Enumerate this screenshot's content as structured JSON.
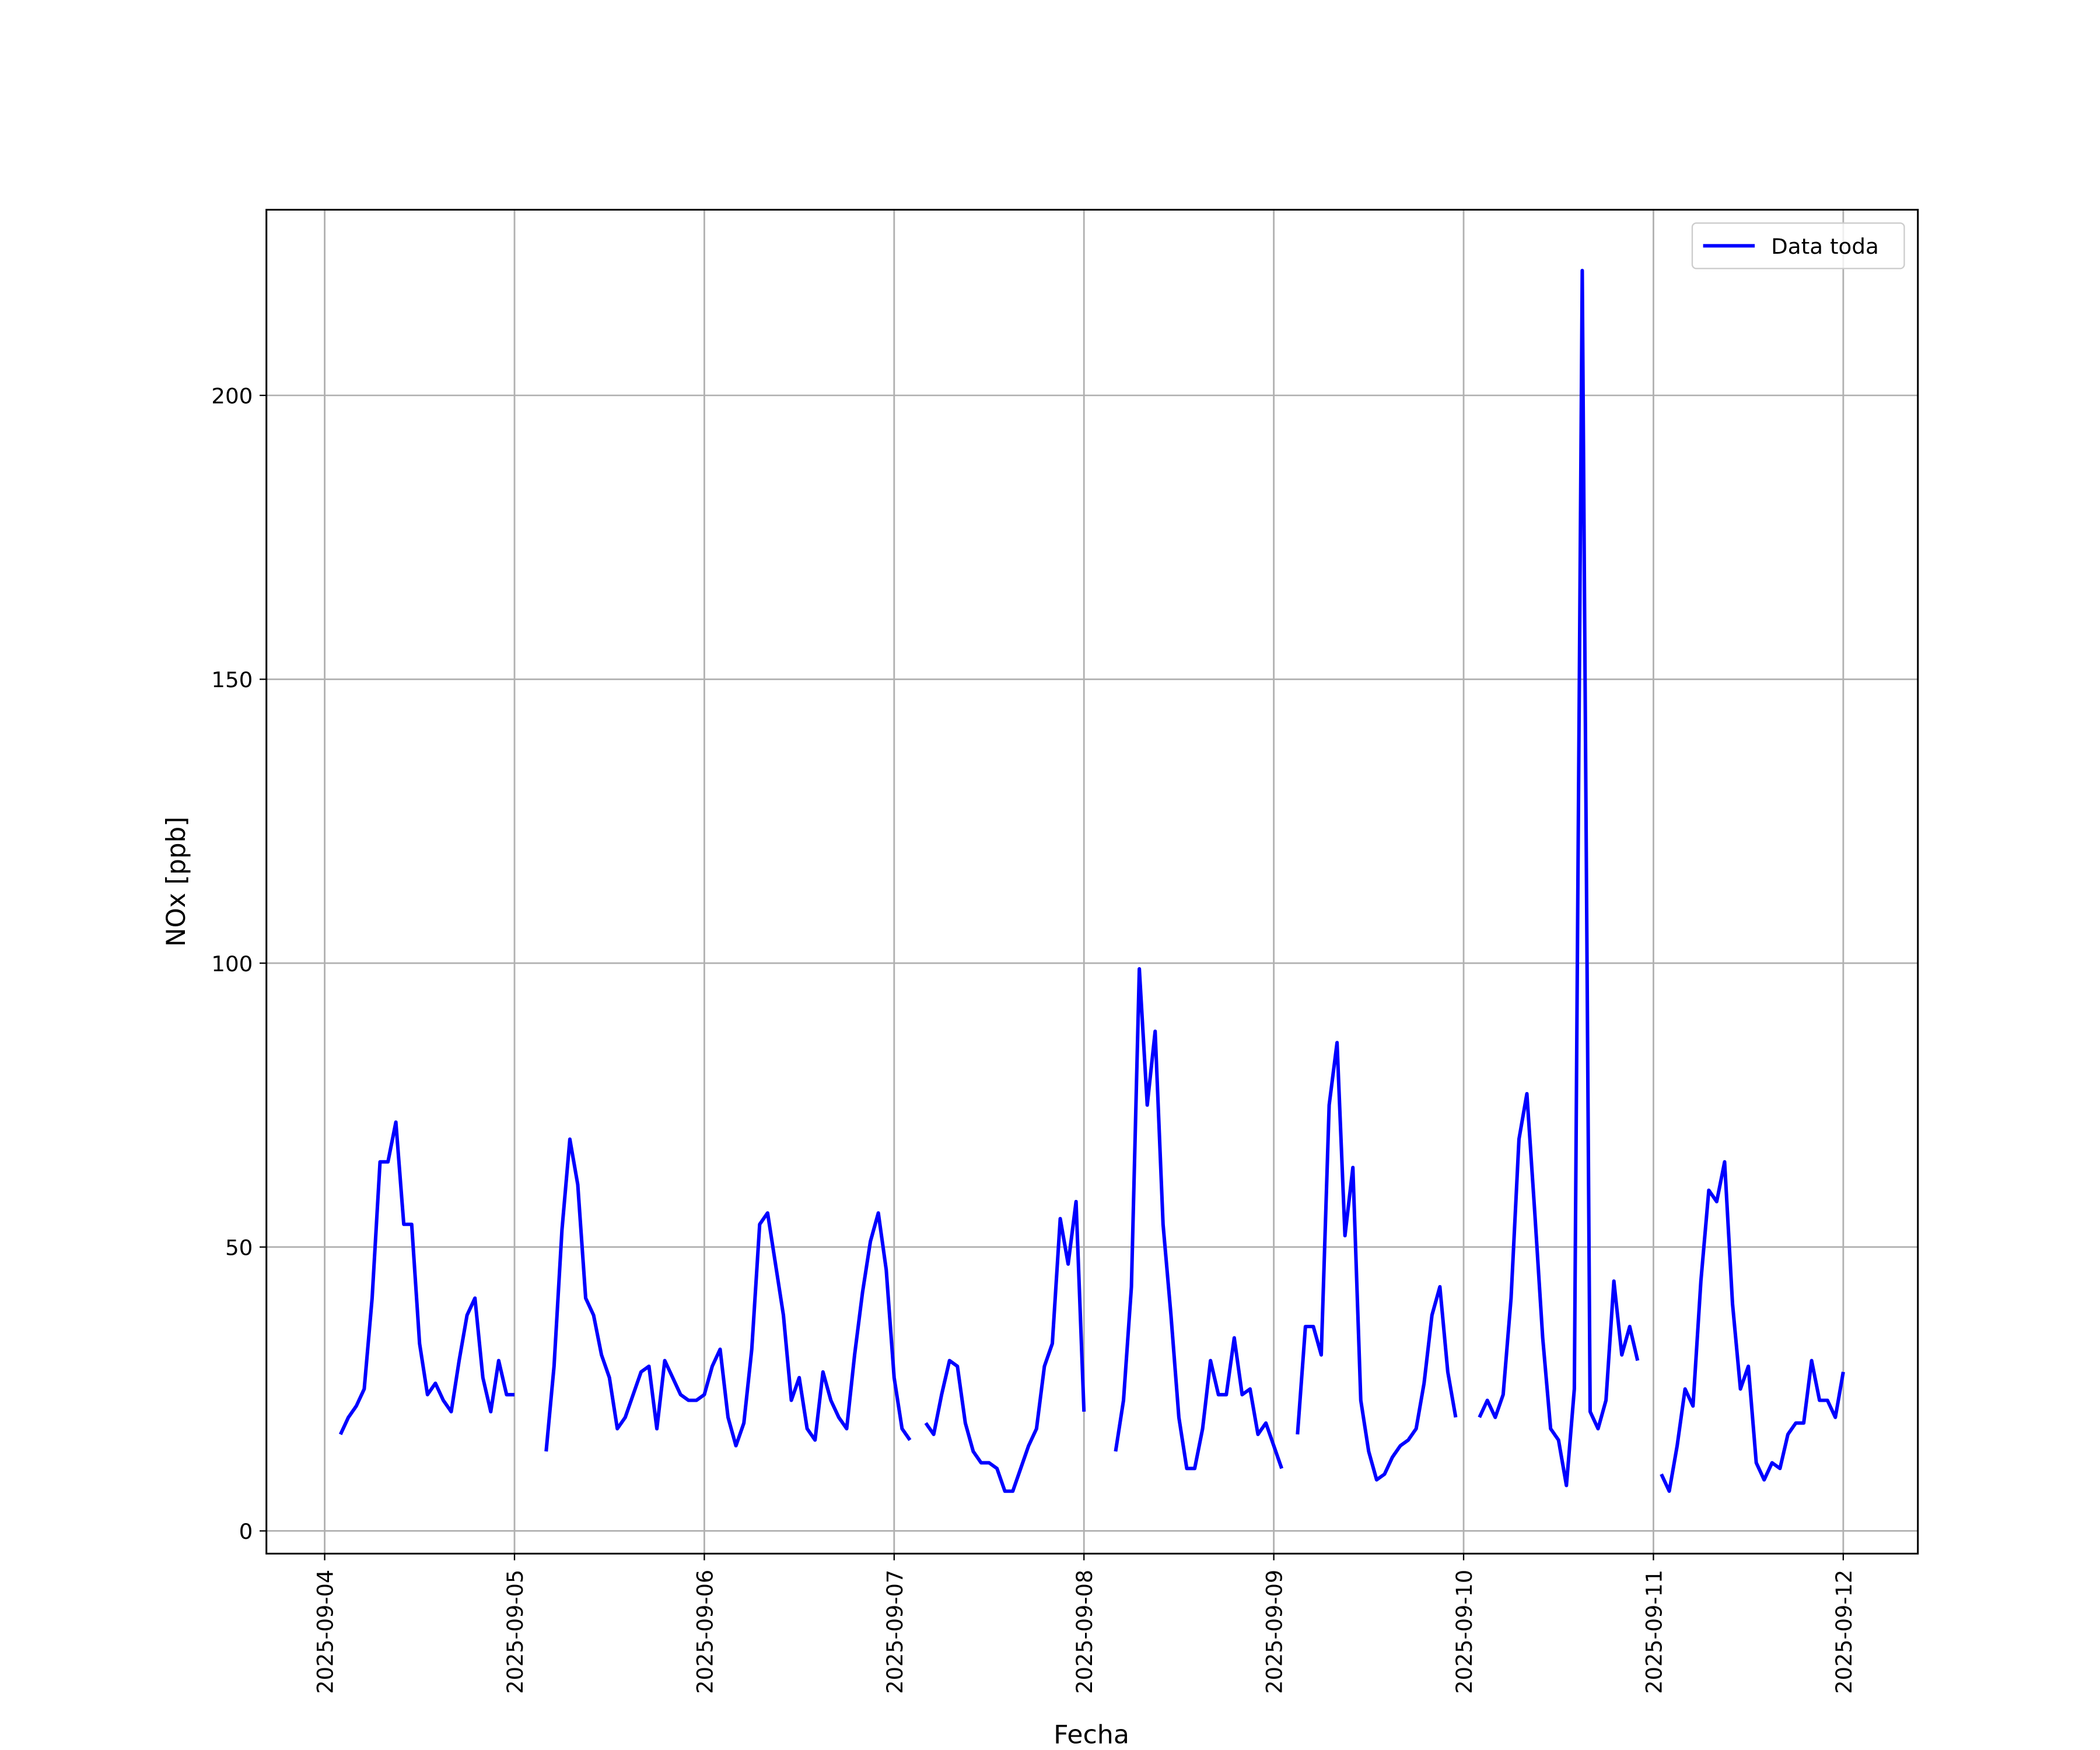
{
  "chart_data": {
    "type": "line",
    "xlabel": "Fecha",
    "ylabel": "NOx [ppb]",
    "legend": "upper right",
    "grid": true,
    "xlim": [
      "2025-09-03 16:38",
      "2025-09-12 09:26"
    ],
    "ylim": [
      -4,
      232.7
    ],
    "xticks": [
      "2025-09-04",
      "2025-09-05",
      "2025-09-06",
      "2025-09-07",
      "2025-09-08",
      "2025-09-09",
      "2025-09-10",
      "2025-09-11",
      "2025-09-12"
    ],
    "yticks": [
      0,
      50,
      100,
      150,
      200
    ],
    "x": [
      "2025-09-04 02:00",
      "2025-09-04 03:00",
      "2025-09-04 04:00",
      "2025-09-04 05:00",
      "2025-09-04 06:00",
      "2025-09-04 07:00",
      "2025-09-04 08:00",
      "2025-09-04 09:00",
      "2025-09-04 10:00",
      "2025-09-04 11:00",
      "2025-09-04 12:00",
      "2025-09-04 13:00",
      "2025-09-04 14:00",
      "2025-09-04 15:00",
      "2025-09-04 16:00",
      "2025-09-04 17:00",
      "2025-09-04 18:00",
      "2025-09-04 19:00",
      "2025-09-04 20:00",
      "2025-09-04 21:00",
      "2025-09-04 22:00",
      "2025-09-04 23:00",
      "2025-09-05 00:00",
      "2025-09-05 01:00",
      "2025-09-05 04:00",
      "2025-09-05 05:00",
      "2025-09-05 06:00",
      "2025-09-05 07:00",
      "2025-09-05 08:00",
      "2025-09-05 09:00",
      "2025-09-05 10:00",
      "2025-09-05 11:00",
      "2025-09-05 12:00",
      "2025-09-05 13:00",
      "2025-09-05 14:00",
      "2025-09-05 15:00",
      "2025-09-05 16:00",
      "2025-09-05 17:00",
      "2025-09-05 18:00",
      "2025-09-05 19:00",
      "2025-09-05 20:00",
      "2025-09-05 21:00",
      "2025-09-05 22:00",
      "2025-09-05 23:00",
      "2025-09-06 00:00",
      "2025-09-06 01:00",
      "2025-09-06 02:00",
      "2025-09-06 03:00",
      "2025-09-06 04:00",
      "2025-09-06 05:00",
      "2025-09-06 06:00",
      "2025-09-06 07:00",
      "2025-09-06 08:00",
      "2025-09-06 09:00",
      "2025-09-06 10:00",
      "2025-09-06 11:00",
      "2025-09-06 12:00",
      "2025-09-06 13:00",
      "2025-09-06 14:00",
      "2025-09-06 15:00",
      "2025-09-06 16:00",
      "2025-09-06 17:00",
      "2025-09-06 18:00",
      "2025-09-06 19:00",
      "2025-09-06 20:00",
      "2025-09-06 21:00",
      "2025-09-06 22:00",
      "2025-09-06 23:00",
      "2025-09-07 00:00",
      "2025-09-07 01:00",
      "2025-09-07 02:00",
      "2025-09-07 03:00",
      "2025-09-07 04:00",
      "2025-09-07 05:00",
      "2025-09-07 06:00",
      "2025-09-07 07:00",
      "2025-09-07 08:00",
      "2025-09-07 09:00",
      "2025-09-07 10:00",
      "2025-09-07 11:00",
      "2025-09-07 12:00",
      "2025-09-07 13:00",
      "2025-09-07 14:00",
      "2025-09-07 15:00",
      "2025-09-07 16:00",
      "2025-09-07 17:00",
      "2025-09-07 18:00",
      "2025-09-07 19:00",
      "2025-09-07 20:00",
      "2025-09-07 21:00",
      "2025-09-07 22:00",
      "2025-09-07 23:00",
      "2025-09-08 00:00",
      "2025-09-08 01:00",
      "2025-09-08 04:00",
      "2025-09-08 05:00",
      "2025-09-08 06:00",
      "2025-09-08 07:00",
      "2025-09-08 08:00",
      "2025-09-08 09:00",
      "2025-09-08 10:00",
      "2025-09-08 11:00",
      "2025-09-08 12:00",
      "2025-09-08 13:00",
      "2025-09-08 14:00",
      "2025-09-08 15:00",
      "2025-09-08 16:00",
      "2025-09-08 17:00",
      "2025-09-08 18:00",
      "2025-09-08 19:00",
      "2025-09-08 20:00",
      "2025-09-08 21:00",
      "2025-09-08 22:00",
      "2025-09-08 23:00",
      "2025-09-09 00:00",
      "2025-09-09 01:00",
      "2025-09-09 02:00",
      "2025-09-09 03:00",
      "2025-09-09 04:00",
      "2025-09-09 05:00",
      "2025-09-09 06:00",
      "2025-09-09 07:00",
      "2025-09-09 08:00",
      "2025-09-09 09:00",
      "2025-09-09 10:00",
      "2025-09-09 11:00",
      "2025-09-09 12:00",
      "2025-09-09 13:00",
      "2025-09-09 14:00",
      "2025-09-09 15:00",
      "2025-09-09 16:00",
      "2025-09-09 17:00",
      "2025-09-09 18:00",
      "2025-09-09 19:00",
      "2025-09-09 20:00",
      "2025-09-09 21:00",
      "2025-09-09 22:00",
      "2025-09-09 23:00",
      "2025-09-10 00:00",
      "2025-09-10 02:00",
      "2025-09-10 03:00",
      "2025-09-10 04:00",
      "2025-09-10 05:00",
      "2025-09-10 06:00",
      "2025-09-10 07:00",
      "2025-09-10 08:00",
      "2025-09-10 09:00",
      "2025-09-10 10:00",
      "2025-09-10 11:00",
      "2025-09-10 12:00",
      "2025-09-10 13:00",
      "2025-09-10 14:00",
      "2025-09-10 15:00",
      "2025-09-10 16:00",
      "2025-09-10 17:00",
      "2025-09-10 18:00",
      "2025-09-10 19:00",
      "2025-09-10 20:00",
      "2025-09-10 21:00",
      "2025-09-10 22:00",
      "2025-09-10 23:00",
      "2025-09-11 01:00",
      "2025-09-11 02:00",
      "2025-09-11 03:00",
      "2025-09-11 04:00",
      "2025-09-11 05:00",
      "2025-09-11 06:00",
      "2025-09-11 07:00",
      "2025-09-11 08:00",
      "2025-09-11 09:00",
      "2025-09-11 10:00",
      "2025-09-11 11:00",
      "2025-09-11 12:00",
      "2025-09-11 13:00",
      "2025-09-11 14:00",
      "2025-09-11 15:00",
      "2025-09-11 16:00",
      "2025-09-11 17:00",
      "2025-09-11 18:00",
      "2025-09-11 19:00",
      "2025-09-11 20:00",
      "2025-09-11 21:00",
      "2025-09-11 22:00",
      "2025-09-11 23:00",
      "2025-09-12 00:00"
    ],
    "series": [
      {
        "name": "Data toda",
        "color": "#0000ff",
        "values": [
          17,
          20,
          22,
          25,
          41,
          65,
          65,
          72,
          54,
          54,
          33,
          24,
          26,
          23,
          21,
          30,
          38,
          41,
          27,
          21,
          30,
          24,
          24,
          null,
          14,
          29,
          53,
          69,
          61,
          41,
          38,
          31,
          27,
          18,
          20,
          24,
          28,
          29,
          18,
          30,
          27,
          24,
          23,
          23,
          24,
          29,
          32,
          20,
          15,
          19,
          32,
          54,
          56,
          47,
          38,
          23,
          27,
          18,
          16,
          28,
          23,
          20,
          18,
          31,
          42,
          51,
          56,
          46,
          27,
          18,
          16,
          null,
          19,
          17,
          24,
          30,
          29,
          19,
          14,
          12,
          12,
          11,
          7,
          7,
          11,
          15,
          18,
          29,
          33,
          55,
          47,
          58,
          21,
          null,
          14,
          23,
          43,
          99,
          75,
          88,
          54,
          38,
          20,
          11,
          11,
          18,
          30,
          24,
          24,
          34,
          24,
          25,
          17,
          19,
          15,
          11,
          null,
          17,
          36,
          36,
          31,
          75,
          86,
          52,
          64,
          23,
          14,
          9,
          10,
          13,
          15,
          16,
          18,
          26,
          38,
          43,
          28,
          20,
          null,
          20,
          23,
          20,
          24,
          41,
          69,
          77,
          56,
          34,
          18,
          16,
          8,
          25,
          222,
          21,
          18,
          23,
          44,
          31,
          36,
          30,
          null,
          10,
          7,
          15,
          25,
          22,
          44,
          60,
          58,
          65,
          40,
          25,
          29,
          12,
          9,
          12,
          11,
          17,
          19,
          19,
          30,
          23,
          23,
          20,
          28
        ]
      }
    ]
  }
}
